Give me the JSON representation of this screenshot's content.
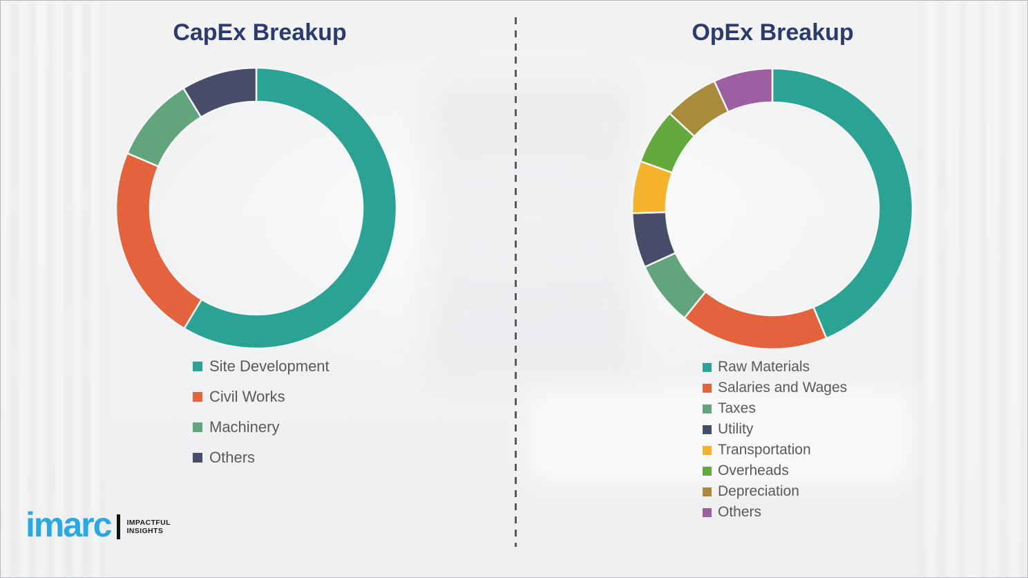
{
  "colors": {
    "heading_navy": "#2b3b6e",
    "legend_text_gray": "#595959",
    "logo_blue": "#29a9e1",
    "divider_gray": "#58595b",
    "background_light": "#f1f1f2",
    "segment_gap_white": "#f6f7f7"
  },
  "chart_data": [
    {
      "type": "pie",
      "variant": "donut",
      "title": "CapEx Breakup",
      "categories": [
        "Site Development",
        "Civil Works",
        "Machinery",
        "Others"
      ],
      "values": [
        58.6,
        22.8,
        9.9,
        8.7
      ],
      "colors": [
        "#2aa294",
        "#e4623c",
        "#62a47c",
        "#474c68"
      ],
      "legend_position": "below-left",
      "start_angle_deg": 0,
      "direction": "clockwise",
      "data_labels_shown": false,
      "values_note": "percent shares estimated from arc angles; no numeric labels visible in image"
    },
    {
      "type": "pie",
      "variant": "donut",
      "title": "OpEx Breakup",
      "categories": [
        "Raw Materials",
        "Salaries and Wages",
        "Taxes",
        "Utility",
        "Transportation",
        "Overheads",
        "Depreciation",
        "Others"
      ],
      "values": [
        43.7,
        17.1,
        7.4,
        6.3,
        6.0,
        6.4,
        6.3,
        6.8
      ],
      "colors": [
        "#2aa294",
        "#e4623c",
        "#62a47c",
        "#474c68",
        "#f5b32d",
        "#64a93c",
        "#a98b3d",
        "#9e5fa0"
      ],
      "legend_position": "below-left",
      "start_angle_deg": 0,
      "direction": "clockwise",
      "data_labels_shown": false,
      "values_note": "percent shares estimated from arc angles; no numeric labels visible in image"
    }
  ],
  "logo": {
    "wordmark": "imarc",
    "tagline_line1": "IMPACTFUL",
    "tagline_line2": "INSIGHTS"
  }
}
